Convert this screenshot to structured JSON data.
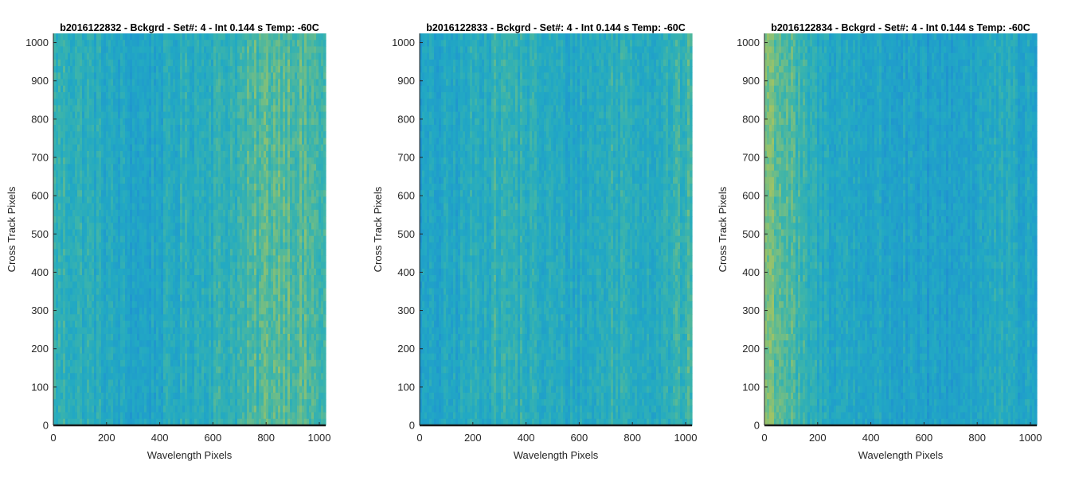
{
  "chart_data": [
    {
      "type": "heatmap",
      "title": "b2016122832 - Bckgrd - Set#: 4 - Int 0.144 s Temp: -60C",
      "xlabel": "Wavelength Pixels",
      "ylabel": "Cross Track Pixels",
      "xlim": [
        0,
        1024
      ],
      "ylim": [
        0,
        1024
      ],
      "xticks": [
        0,
        200,
        400,
        600,
        800,
        1000
      ],
      "yticks": [
        0,
        100,
        200,
        300,
        400,
        500,
        600,
        700,
        800,
        900,
        1000
      ],
      "colormap": [
        "#1e88d0",
        "#1f9acd",
        "#22a9c3",
        "#3cb4ab",
        "#7ebf7c",
        "#b5c656"
      ],
      "column_profile": [
        0.52,
        0.5,
        0.46,
        0.38,
        0.33,
        0.34,
        0.4,
        0.46,
        0.5,
        0.52,
        0.58,
        0.68,
        0.72,
        0.64,
        0.58
      ]
    },
    {
      "type": "heatmap",
      "title": "b2016122833 - Bckgrd - Set#: 4 - Int 0.144 s Temp: -60C",
      "xlabel": "Wavelength Pixels",
      "ylabel": "Cross Track Pixels",
      "xlim": [
        0,
        1024
      ],
      "ylim": [
        0,
        1024
      ],
      "xticks": [
        0,
        200,
        400,
        600,
        800,
        1000
      ],
      "yticks": [
        0,
        100,
        200,
        300,
        400,
        500,
        600,
        700,
        800,
        900,
        1000
      ],
      "colormap": [
        "#1e88d0",
        "#1f9acd",
        "#22a9c3",
        "#3cb4ab",
        "#7ebf7c",
        "#b5c656"
      ],
      "column_profile": [
        0.3,
        0.32,
        0.38,
        0.46,
        0.52,
        0.5,
        0.44,
        0.4,
        0.38,
        0.42,
        0.5,
        0.48,
        0.44,
        0.5,
        0.58
      ]
    },
    {
      "type": "heatmap",
      "title": "b2016122834 - Bckgrd - Set#: 4 - Int 0.144 s Temp: -60C",
      "xlabel": "Wavelength Pixels",
      "ylabel": "Cross Track Pixels",
      "xlim": [
        0,
        1024
      ],
      "ylim": [
        0,
        1024
      ],
      "xticks": [
        0,
        200,
        400,
        600,
        800,
        1000
      ],
      "yticks": [
        0,
        100,
        200,
        300,
        400,
        500,
        600,
        700,
        800,
        900,
        1000
      ],
      "colormap": [
        "#1e88d0",
        "#1f9acd",
        "#22a9c3",
        "#3cb4ab",
        "#7ebf7c",
        "#b5c656"
      ],
      "column_profile": [
        0.82,
        0.68,
        0.5,
        0.42,
        0.38,
        0.36,
        0.34,
        0.3,
        0.26,
        0.28,
        0.32,
        0.36,
        0.4,
        0.36,
        0.32
      ]
    }
  ]
}
